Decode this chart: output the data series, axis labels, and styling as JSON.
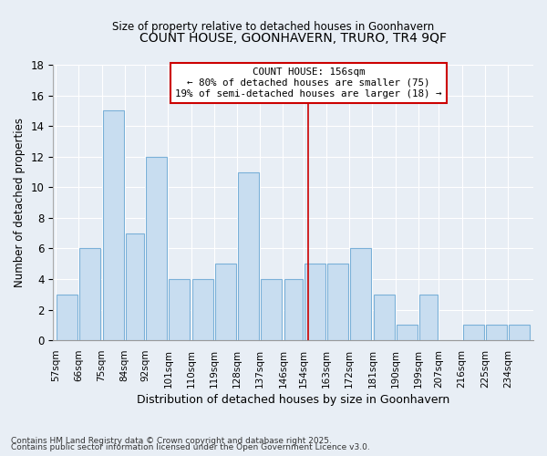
{
  "title": "COUNT HOUSE, GOONHAVERN, TRURO, TR4 9QF",
  "subtitle": "Size of property relative to detached houses in Goonhavern",
  "xlabel": "Distribution of detached houses by size in Goonhavern",
  "ylabel": "Number of detached properties",
  "bins": [
    57,
    66,
    75,
    84,
    92,
    101,
    110,
    119,
    128,
    137,
    146,
    154,
    163,
    172,
    181,
    190,
    199,
    207,
    216,
    225,
    234,
    243
  ],
  "counts": [
    3,
    6,
    15,
    7,
    12,
    4,
    4,
    5,
    11,
    4,
    4,
    5,
    5,
    6,
    3,
    1,
    3,
    0,
    1,
    1,
    1
  ],
  "bar_facecolor": "#c8ddf0",
  "bar_edgecolor": "#7ab0d8",
  "bar_linewidth": 0.8,
  "ref_line_x": 156,
  "ref_line_color": "#cc0000",
  "annotation_text": "COUNT HOUSE: 156sqm\n← 80% of detached houses are smaller (75)\n19% of semi-detached houses are larger (18) →",
  "annotation_box_edgecolor": "#cc0000",
  "annotation_box_facecolor": "#ffffff",
  "ylim": [
    0,
    18
  ],
  "yticks": [
    0,
    2,
    4,
    6,
    8,
    10,
    12,
    14,
    16,
    18
  ],
  "bg_color": "#e8eef5",
  "plot_bg_color": "#e8eef5",
  "grid_color": "#ffffff",
  "footer_line1": "Contains HM Land Registry data © Crown copyright and database right 2025.",
  "footer_line2": "Contains public sector information licensed under the Open Government Licence v3.0.",
  "tick_labels": [
    "57sqm",
    "66sqm",
    "75sqm",
    "84sqm",
    "92sqm",
    "101sqm",
    "110sqm",
    "119sqm",
    "128sqm",
    "137sqm",
    "146sqm",
    "154sqm",
    "163sqm",
    "172sqm",
    "181sqm",
    "190sqm",
    "199sqm",
    "207sqm",
    "216sqm",
    "225sqm",
    "234sqm"
  ]
}
